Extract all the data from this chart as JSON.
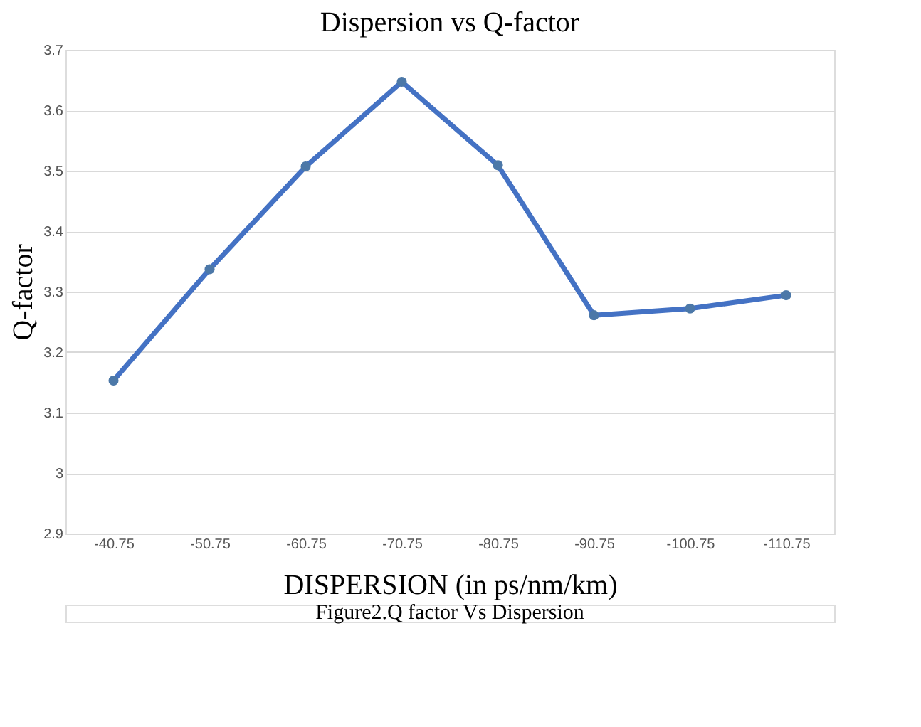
{
  "chart_data": {
    "type": "line",
    "title": "Dispersion vs Q-factor",
    "xlabel": "DISPERSION  (in ps/nm/km)",
    "ylabel": "Q-factor",
    "categories": [
      "-40.75",
      "-50.75",
      "-60.75",
      "-70.75",
      "-80.75",
      "-90.75",
      "-100.75",
      "-110.75"
    ],
    "series": [
      {
        "color": "#4472c4",
        "values": [
          3.153,
          3.337,
          3.507,
          3.647,
          3.509,
          3.261,
          3.272,
          3.294
        ]
      }
    ],
    "ylim": [
      2.9,
      3.7
    ],
    "yticks": [
      2.9,
      3,
      3.1,
      3.2,
      3.3,
      3.4,
      3.5,
      3.6,
      3.7
    ],
    "grid": "y",
    "marker": "circle",
    "line_style": "solid",
    "annotations": [
      "Figure2.Q factor Vs Dispersion"
    ]
  }
}
